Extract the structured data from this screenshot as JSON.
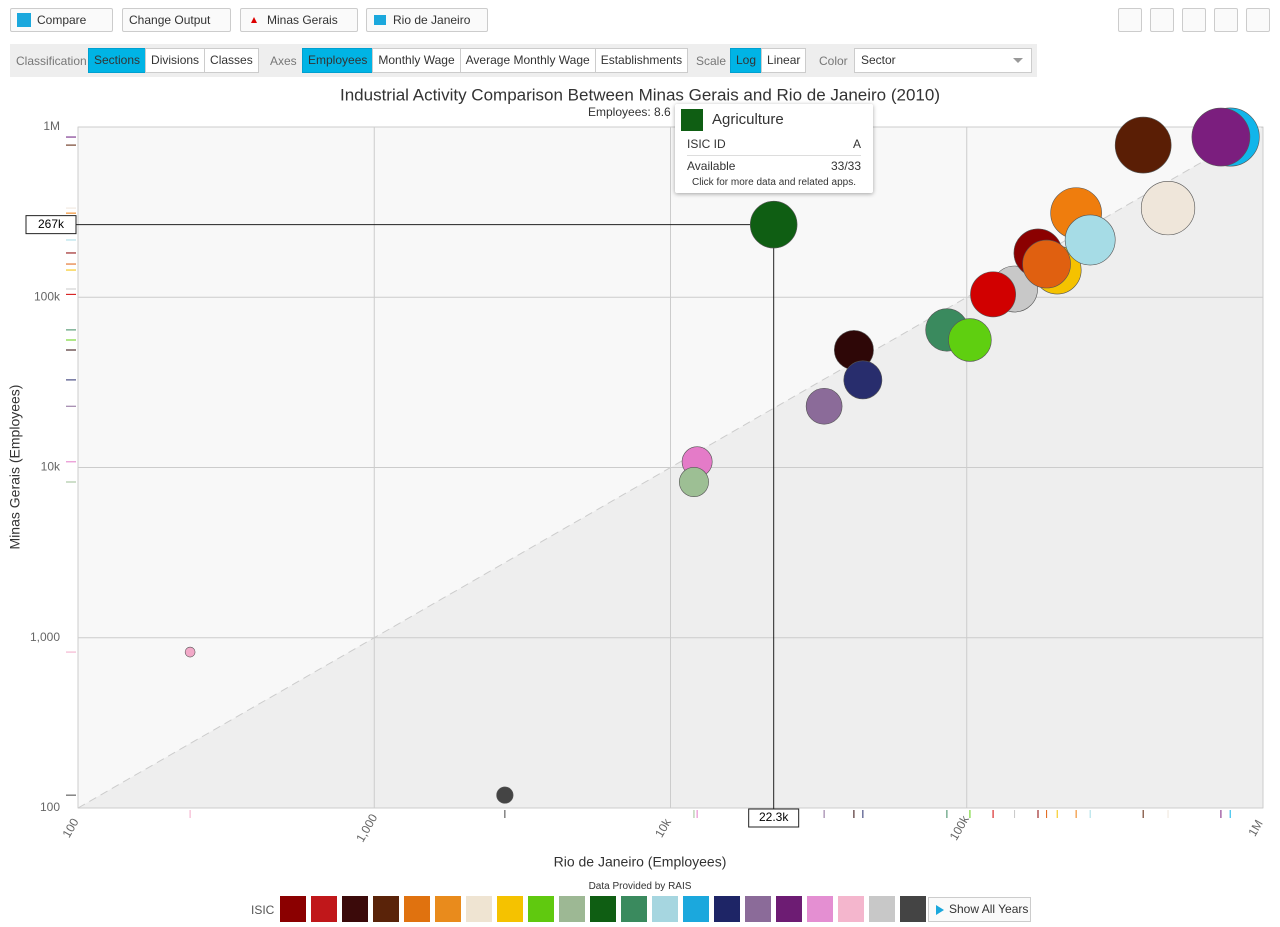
{
  "toolbar": {
    "buttons": [
      "Compare",
      "Change Output",
      "Minas Gerais",
      "Rio de Janeiro"
    ]
  },
  "controls": {
    "classification": {
      "label": "Classification",
      "options": [
        "Sections",
        "Divisions",
        "Classes"
      ],
      "active": 0
    },
    "axes": {
      "label": "Axes",
      "options": [
        "Employees",
        "Monthly Wage",
        "Average Monthly Wage",
        "Establishments"
      ],
      "active": 0
    },
    "scale": {
      "label": "Scale",
      "options": [
        "Log",
        "Linear"
      ],
      "active": 0
    },
    "color": {
      "label": "Color",
      "value": "Sector"
    }
  },
  "chart_data": {
    "type": "scatter",
    "title": "Industrial Activity Comparison Between Minas Gerais and Rio de Janeiro (2010)",
    "subtitle": "Employees: 8.6",
    "x_label": "Rio de Janeiro (Employees)",
    "y_label": "Minas Gerais (Employees)",
    "log_scale": true,
    "grid": true,
    "xlim": [
      100,
      1000000
    ],
    "ylim": [
      100,
      1000000
    ],
    "xticks": [
      100,
      {
        "value": 1000,
        "label": "1,000"
      },
      {
        "value": 10000,
        "label": "10k"
      },
      {
        "value": 100000,
        "label": "100k"
      },
      {
        "value": 1000000,
        "label": "1M"
      }
    ],
    "yticks": [
      100,
      {
        "value": 1000,
        "label": "1,000"
      },
      {
        "value": 10000,
        "label": "10k"
      },
      {
        "value": 100000,
        "label": "100k"
      },
      {
        "value": 1000000,
        "label": "1M"
      }
    ],
    "series": [
      {
        "x": [
          239,
          2760,
          12300,
          12000,
          22300,
          33000,
          41600,
          44600,
          85700,
          102500,
          145000,
          122700,
          174000,
          202000,
          186000,
          234000,
          261000,
          478000,
          394000,
          775000,
          721000
        ],
        "values": [
          824,
          119,
          10800,
          8220,
          267000,
          22900,
          49000,
          32700,
          64300,
          56100,
          111800,
          104000,
          182000,
          144500,
          156700,
          312000,
          217000,
          334000,
          783000,
          873000,
          873000
        ],
        "colors": [
          "#f2a9c8",
          "#444444",
          "#e47bc8",
          "#9dbf94",
          "#0f5e13",
          "#8b6b99",
          "#2e0707",
          "#282d6d",
          "#3a8a5e",
          "#5fcf10",
          "#c8c8c8",
          "#d10000",
          "#8b0000",
          "#f5c200",
          "#e06010",
          "#ef7d0d",
          "#a6dce6",
          "#efe6da",
          "#5a1e05",
          "#11b5ea",
          "#7b1e7e"
        ]
      }
    ],
    "hover": {
      "index": 4,
      "x_label": "22.3k",
      "y_label": "267k"
    }
  },
  "tooltip": {
    "title": "Agriculture",
    "rows": [
      [
        "ISIC ID",
        "A"
      ],
      [
        "Available",
        "33/33"
      ]
    ],
    "note": "Click for more data and related apps."
  },
  "footer": {
    "source": "Data Provided by RAIS",
    "legend_label": "ISIC",
    "legend_colors": [
      "#8b0000",
      "#c0171a",
      "#3b0a0a",
      "#5a2309",
      "#e0720f",
      "#e98b1c",
      "#efe4d2",
      "#f5c200",
      "#60c90f",
      "#9db894",
      "#0f5e13",
      "#3a8a5e",
      "#a6d6e0",
      "#1ba8dd",
      "#1e2566",
      "#8b6b99",
      "#6d1c73",
      "#e48fd2",
      "#f4b6cd",
      "#c8c8c8",
      "#444444"
    ],
    "button": "Show All Years"
  }
}
